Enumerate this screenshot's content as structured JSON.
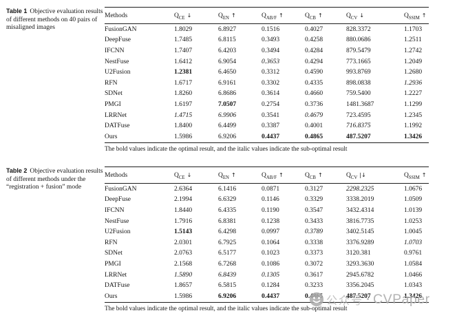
{
  "table1": {
    "caption_label": "Table 1",
    "caption_text": "Objective evaluation results of different methods on 40 pairs of misaligned images",
    "headers": [
      {
        "label": "Methods"
      },
      {
        "base": "Q",
        "sub": "CE",
        "arrow": "↓"
      },
      {
        "base": "Q",
        "sub": "EN",
        "arrow": "↑"
      },
      {
        "base": "Q",
        "sub": "AB/F",
        "arrow": "↑"
      },
      {
        "base": "Q",
        "sub": "CB",
        "arrow": "↑"
      },
      {
        "base": "Q",
        "sub": "CV",
        "arrow": "↓"
      },
      {
        "base": "Q",
        "sub": "SSIM",
        "arrow": "↑"
      }
    ],
    "rows": [
      {
        "method": "FusionGAN",
        "cells": [
          {
            "v": "1.8029"
          },
          {
            "v": "6.8927"
          },
          {
            "v": "0.1516"
          },
          {
            "v": "0.4027"
          },
          {
            "v": "828.3372"
          },
          {
            "v": "1.1703"
          }
        ]
      },
      {
        "method": "DeepFuse",
        "cells": [
          {
            "v": "1.7485"
          },
          {
            "v": "6.8115"
          },
          {
            "v": "0.3493"
          },
          {
            "v": "0.4258"
          },
          {
            "v": "880.0686"
          },
          {
            "v": "1.2511"
          }
        ]
      },
      {
        "method": "IFCNN",
        "cells": [
          {
            "v": "1.7407"
          },
          {
            "v": "6.4203"
          },
          {
            "v": "0.3494"
          },
          {
            "v": "0.4284"
          },
          {
            "v": "879.5479"
          },
          {
            "v": "1.2742"
          }
        ]
      },
      {
        "method": "NestFuse",
        "cells": [
          {
            "v": "1.6412"
          },
          {
            "v": "6.9054"
          },
          {
            "v": "0.3653",
            "s": "i"
          },
          {
            "v": "0.4294"
          },
          {
            "v": "773.1665"
          },
          {
            "v": "1.2049"
          }
        ]
      },
      {
        "method": "U2Fusion",
        "cells": [
          {
            "v": "1.2381",
            "s": "b"
          },
          {
            "v": "6.4650"
          },
          {
            "v": "0.3312"
          },
          {
            "v": "0.4590"
          },
          {
            "v": "993.8769"
          },
          {
            "v": "1.2680"
          }
        ]
      },
      {
        "method": "RFN",
        "cells": [
          {
            "v": "1.6717"
          },
          {
            "v": "6.9161"
          },
          {
            "v": "0.3302"
          },
          {
            "v": "0.4335"
          },
          {
            "v": "898.0838"
          },
          {
            "v": "1.2936",
            "s": "i"
          }
        ]
      },
      {
        "method": "SDNet",
        "cells": [
          {
            "v": "1.8260"
          },
          {
            "v": "6.8686"
          },
          {
            "v": "0.3614"
          },
          {
            "v": "0.4660"
          },
          {
            "v": "759.5400"
          },
          {
            "v": "1.2227"
          }
        ]
      },
      {
        "method": "PMGI",
        "cells": [
          {
            "v": "1.6197"
          },
          {
            "v": "7.0507",
            "s": "b"
          },
          {
            "v": "0.2754"
          },
          {
            "v": "0.3736"
          },
          {
            "v": "1481.3687"
          },
          {
            "v": "1.1299"
          }
        ]
      },
      {
        "method": "LRRNet",
        "cells": [
          {
            "v": "1.4715",
            "s": "i"
          },
          {
            "v": "6.9906",
            "s": "i"
          },
          {
            "v": "0.3541"
          },
          {
            "v": "0.4679",
            "s": "i"
          },
          {
            "v": "723.4595"
          },
          {
            "v": "1.2345"
          }
        ]
      },
      {
        "method": "DATFuse",
        "cells": [
          {
            "v": "1.8400"
          },
          {
            "v": "6.4499"
          },
          {
            "v": "0.3387"
          },
          {
            "v": "0.4001"
          },
          {
            "v": "716.8375",
            "s": "i"
          },
          {
            "v": "1.1992"
          }
        ]
      },
      {
        "method": "Ours",
        "cells": [
          {
            "v": "1.5986"
          },
          {
            "v": "6.9206"
          },
          {
            "v": "0.4437",
            "s": "b"
          },
          {
            "v": "0.4865",
            "s": "b"
          },
          {
            "v": "487.5207",
            "s": "b"
          },
          {
            "v": "1.3426",
            "s": "b"
          }
        ]
      }
    ],
    "footnote": "The bold values indicate the optimal result, and the italic values indicate the sub-optimal result"
  },
  "table2": {
    "caption_label": "Table 2",
    "caption_text": "Objective evaluation results of different methods under the “registration + fusion” mode",
    "headers": [
      {
        "label": "Methods"
      },
      {
        "base": "Q",
        "sub": "CE",
        "arrow": "↓"
      },
      {
        "base": "Q",
        "sub": "EN",
        "arrow": "↑"
      },
      {
        "base": "Q",
        "sub": "AB/F",
        "arrow": "↑"
      },
      {
        "base": "Q",
        "sub": "CB",
        "arrow": "↑"
      },
      {
        "base": "Q",
        "sub": "CV",
        "arrow": "|↓"
      },
      {
        "base": "Q",
        "sub": "SSIM",
        "arrow": "↑"
      }
    ],
    "rows": [
      {
        "method": "FusionGAN",
        "cells": [
          {
            "v": "2.6364"
          },
          {
            "v": "6.1416"
          },
          {
            "v": "0.0871"
          },
          {
            "v": "0.3127"
          },
          {
            "v": "2298.2325",
            "s": "i"
          },
          {
            "v": "1.0676"
          }
        ]
      },
      {
        "method": "DeepFuse",
        "cells": [
          {
            "v": "2.1994"
          },
          {
            "v": "6.6329"
          },
          {
            "v": "0.1146"
          },
          {
            "v": "0.3329"
          },
          {
            "v": "3338.2019"
          },
          {
            "v": "1.0509"
          }
        ]
      },
      {
        "method": "IFCNN",
        "cells": [
          {
            "v": "1.8440"
          },
          {
            "v": "6.4335"
          },
          {
            "v": "0.1190"
          },
          {
            "v": "0.3547"
          },
          {
            "v": "3432.4314"
          },
          {
            "v": "1.0139"
          }
        ]
      },
      {
        "method": "NestFuse",
        "cells": [
          {
            "v": "1.7916"
          },
          {
            "v": "6.8381"
          },
          {
            "v": "0.1238"
          },
          {
            "v": "0.3433"
          },
          {
            "v": "3816.7735"
          },
          {
            "v": "1.0253"
          }
        ]
      },
      {
        "method": "U2Fusion",
        "cells": [
          {
            "v": "1.5143",
            "s": "b"
          },
          {
            "v": "6.4298"
          },
          {
            "v": "0.0997"
          },
          {
            "v": "0.3789",
            "s": "i"
          },
          {
            "v": "3402.5145"
          },
          {
            "v": "1.0045"
          }
        ]
      },
      {
        "method": "RFN",
        "cells": [
          {
            "v": "2.0301"
          },
          {
            "v": "6.7925"
          },
          {
            "v": "0.1064"
          },
          {
            "v": "0.3338"
          },
          {
            "v": "3376.9289"
          },
          {
            "v": "1.0703",
            "s": "i"
          }
        ]
      },
      {
        "method": "SDNet",
        "cells": [
          {
            "v": "2.0763"
          },
          {
            "v": "6.5177"
          },
          {
            "v": "0.1023"
          },
          {
            "v": "0.3373"
          },
          {
            "v": "3120.381"
          },
          {
            "v": "0.9761"
          }
        ]
      },
      {
        "method": "PMGI",
        "cells": [
          {
            "v": "2.1568"
          },
          {
            "v": "6.7268"
          },
          {
            "v": "0.1086"
          },
          {
            "v": "0.3072"
          },
          {
            "v": "3293.3630"
          },
          {
            "v": "1.0584"
          }
        ]
      },
      {
        "method": "LRRNet",
        "cells": [
          {
            "v": "1.5890",
            "s": "i"
          },
          {
            "v": "6.8439",
            "s": "i"
          },
          {
            "v": "0.1305",
            "s": "i"
          },
          {
            "v": "0.3617"
          },
          {
            "v": "2945.6782"
          },
          {
            "v": "1.0466"
          }
        ]
      },
      {
        "method": "DATFuse",
        "cells": [
          {
            "v": "1.8657"
          },
          {
            "v": "6.5815"
          },
          {
            "v": "0.1284"
          },
          {
            "v": "0.3233"
          },
          {
            "v": "3356.2045"
          },
          {
            "v": "1.0343"
          }
        ]
      },
      {
        "method": "Ours",
        "cells": [
          {
            "v": "1.5986"
          },
          {
            "v": "6.9206",
            "s": "b"
          },
          {
            "v": "0.4437",
            "s": "b"
          },
          {
            "v": "0.4865",
            "s": "b"
          },
          {
            "v": "487.5207",
            "s": "b"
          },
          {
            "v": "1.3426",
            "s": "b"
          }
        ]
      }
    ],
    "footnote": "The bold values indicate the optimal result, and the italic values indicate the sub-optimal result"
  },
  "watermark": {
    "logo": "smiley-camera-logo",
    "cn": "公众号",
    "dot": "·",
    "en": "CVPaper"
  }
}
